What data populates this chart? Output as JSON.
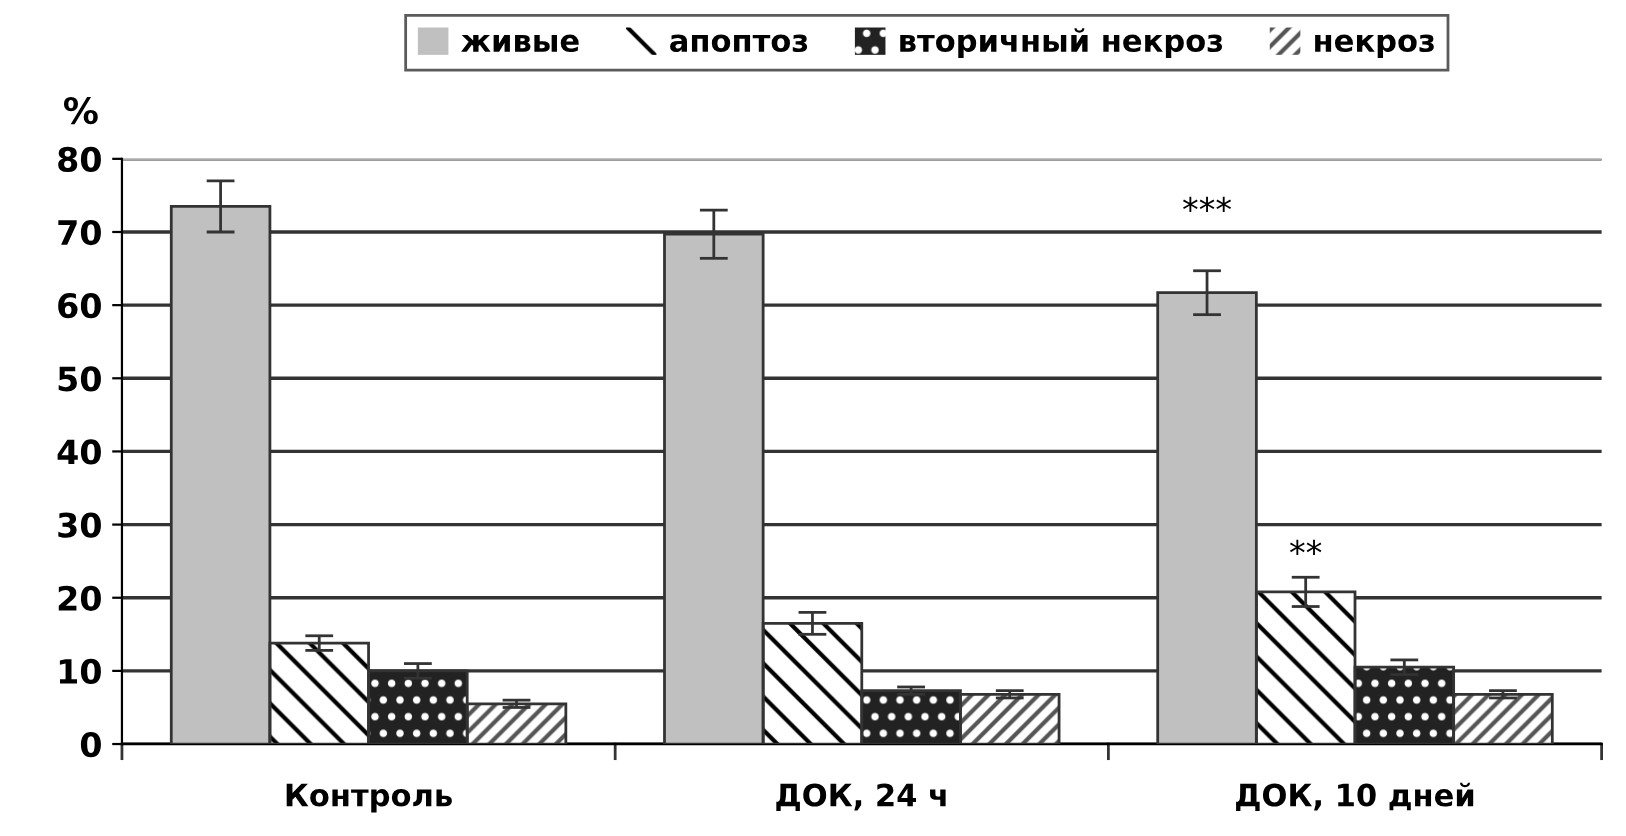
{
  "chart_data": {
    "type": "bar",
    "ylabel": "%",
    "categories": [
      "Контроль",
      "ДОК, 24 ч",
      "ДОК, 10 дней"
    ],
    "series": [
      {
        "name": "живые",
        "color": "#c0c0c0",
        "values": [
          73.5,
          69.7,
          61.7
        ],
        "errors": [
          3.5,
          3.3,
          3
        ]
      },
      {
        "name": "апоптоз",
        "color": "#ffffff",
        "values": [
          13.8,
          16.5,
          20.8
        ],
        "errors": [
          1,
          1.5,
          2
        ]
      },
      {
        "name": "вторичный некроз",
        "color": "#222222",
        "values": [
          10,
          7.3,
          10.5
        ],
        "errors": [
          1,
          0.5,
          1
        ]
      },
      {
        "name": "некроз",
        "color": "#ffffff",
        "values": [
          5.5,
          6.8,
          6.8
        ],
        "errors": [
          0.5,
          0.5,
          0.5
        ]
      }
    ],
    "annotations": [
      "***",
      "**"
    ],
    "ylim": [
      0,
      80
    ],
    "yticks": [
      0,
      10,
      20,
      30,
      40,
      50,
      60,
      70,
      80
    ],
    "grid": "y",
    "legend": "top"
  }
}
